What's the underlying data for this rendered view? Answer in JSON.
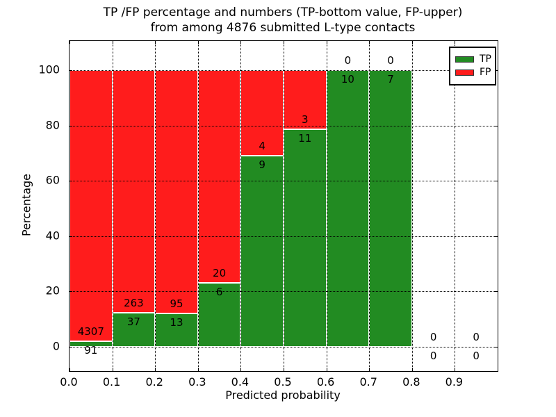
{
  "title_line1": "TP /FP percentage and numbers (TP-bottom value, FP-upper)",
  "title_line2": "from among 4876 submitted L-type contacts",
  "legend": {
    "items": [
      {
        "label": "TP",
        "color": "#228b22"
      },
      {
        "label": "FP",
        "color": "#ff1c1c"
      }
    ]
  },
  "chart_data": {
    "type": "bar",
    "stacked": true,
    "title": "TP /FP percentage and numbers (TP-bottom value, FP-upper) from among 4876 submitted L-type contacts",
    "xlabel": "Predicted probability",
    "ylabel": "Percentage",
    "total_submitted_contacts": 4876,
    "x_bin_edges": [
      0.0,
      0.1,
      0.2,
      0.3,
      0.4,
      0.5,
      0.6,
      0.7,
      0.8,
      0.9,
      1.0
    ],
    "x_tick_labels": [
      "0.0",
      "0.1",
      "0.2",
      "0.3",
      "0.4",
      "0.5",
      "0.6",
      "0.7",
      "0.8",
      "0.9"
    ],
    "y_tick_labels": [
      "0",
      "20",
      "40",
      "60",
      "80",
      "100"
    ],
    "y_tick_values": [
      0,
      20,
      40,
      60,
      80,
      100
    ],
    "xlim": [
      0.0,
      1.0
    ],
    "ylim": [
      -8.8,
      110.6
    ],
    "grid": "dotted",
    "legend_position": "upper right",
    "series": [
      {
        "name": "TP",
        "color": "#228b22",
        "counts": [
          91,
          37,
          13,
          6,
          9,
          11,
          10,
          7,
          0,
          0
        ],
        "pct": [
          2.1,
          12.3,
          12.0,
          23.1,
          69.2,
          78.6,
          100,
          100,
          0,
          0
        ]
      },
      {
        "name": "FP",
        "color": "#ff1c1c",
        "counts": [
          4307,
          263,
          95,
          20,
          4,
          3,
          0,
          0,
          0,
          0
        ],
        "pct": [
          97.9,
          87.7,
          88.0,
          76.9,
          30.8,
          21.4,
          0,
          0,
          0,
          0
        ]
      }
    ]
  }
}
